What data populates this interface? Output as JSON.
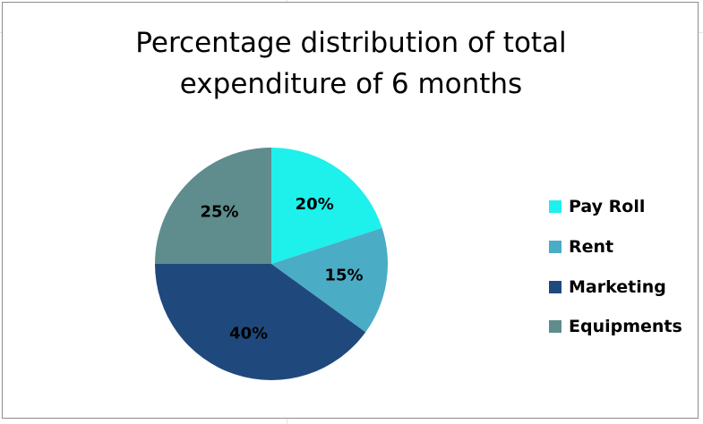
{
  "chart_data": {
    "type": "pie",
    "title": [
      "Percentage distribution of total",
      "expenditure of 6 months"
    ],
    "categories": [
      "Pay Roll",
      "Rent",
      "Marketing",
      "Equipments"
    ],
    "values": [
      20,
      15,
      40,
      25
    ],
    "data_labels": [
      "20%",
      "15%",
      "40%",
      "25%"
    ],
    "colors": [
      "#1ef0ec",
      "#4bacc6",
      "#1f497d",
      "#5f8c8c"
    ],
    "start_angle_deg": 0,
    "direction": "clockwise",
    "legend_position": "right"
  }
}
